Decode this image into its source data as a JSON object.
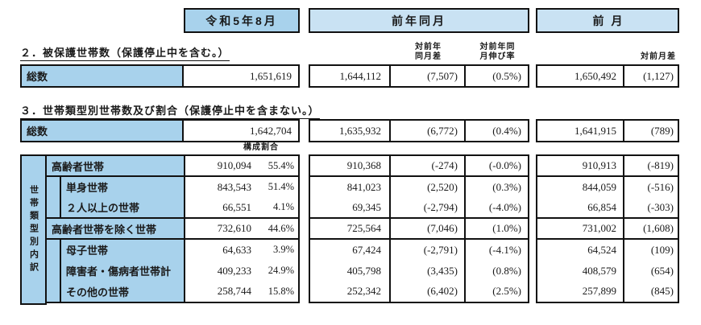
{
  "colors": {
    "label_fill": "#a8d2ec",
    "header_fill": "#c9e2f3",
    "border": "#111111"
  },
  "periods": {
    "current": "令和5年8月",
    "prev_year": "前年同月",
    "prev_month": "前月"
  },
  "column_headers": {
    "prev_year_diff_line1": "対前年",
    "prev_year_diff_line2": "同月差",
    "prev_year_rate_line1": "対前年同",
    "prev_year_rate_line2": "月伸び率",
    "prev_month_diff": "対前月差",
    "composition_ratio": "構成割合"
  },
  "section2": {
    "title": "２．被保護世帯数（保護停止中を含む。）",
    "total_label": "総数",
    "total": {
      "current": "1,651,619",
      "prev_year": "1,644,112",
      "prev_year_diff": "(7,507)",
      "prev_year_rate": "(0.5%)",
      "prev_month": "1,650,492",
      "prev_month_diff": "(1,127)"
    }
  },
  "section3": {
    "title": "３．世帯類型別世帯数及び割合（保護停止中を含まない。）",
    "total_label": "総数",
    "total": {
      "current": "1,642,704",
      "prev_year": "1,635,932",
      "prev_year_diff": "(6,772)",
      "prev_year_rate": "(0.4%)",
      "prev_month": "1,641,915",
      "prev_month_diff": "(789)"
    },
    "breakdown_axis_label": "世帯類型別内訳",
    "rows": [
      {
        "label": "高齢者世帯",
        "current": "910,094",
        "share": "55.4%",
        "prev_year": "910,368",
        "prev_year_diff": "(-274)",
        "prev_year_rate": "(-0.0%)",
        "prev_month": "910,913",
        "prev_month_diff": "(-819)"
      },
      {
        "label": "単身世帯",
        "current": "843,543",
        "share": "51.4%",
        "prev_year": "841,023",
        "prev_year_diff": "(2,520)",
        "prev_year_rate": "(0.3%)",
        "prev_month": "844,059",
        "prev_month_diff": "(-516)"
      },
      {
        "label": "２人以上の世帯",
        "current": "66,551",
        "share": "4.1%",
        "prev_year": "69,345",
        "prev_year_diff": "(-2,794)",
        "prev_year_rate": "(-4.0%)",
        "prev_month": "66,854",
        "prev_month_diff": "(-303)"
      },
      {
        "label": "高齢者世帯を除く世帯",
        "current": "732,610",
        "share": "44.6%",
        "prev_year": "725,564",
        "prev_year_diff": "(7,046)",
        "prev_year_rate": "(1.0%)",
        "prev_month": "731,002",
        "prev_month_diff": "(1,608)"
      },
      {
        "label": "母子世帯",
        "current": "64,633",
        "share": "3.9%",
        "prev_year": "67,424",
        "prev_year_diff": "(-2,791)",
        "prev_year_rate": "(-4.1%)",
        "prev_month": "64,524",
        "prev_month_diff": "(109)"
      },
      {
        "label": "障害者・傷病者世帯計",
        "current": "409,233",
        "share": "24.9%",
        "prev_year": "405,798",
        "prev_year_diff": "(3,435)",
        "prev_year_rate": "(0.8%)",
        "prev_month": "408,579",
        "prev_month_diff": "(654)"
      },
      {
        "label": "その他の世帯",
        "current": "258,744",
        "share": "15.8%",
        "prev_year": "252,342",
        "prev_year_diff": "(6,402)",
        "prev_year_rate": "(2.5%)",
        "prev_month": "257,899",
        "prev_month_diff": "(845)"
      }
    ]
  }
}
